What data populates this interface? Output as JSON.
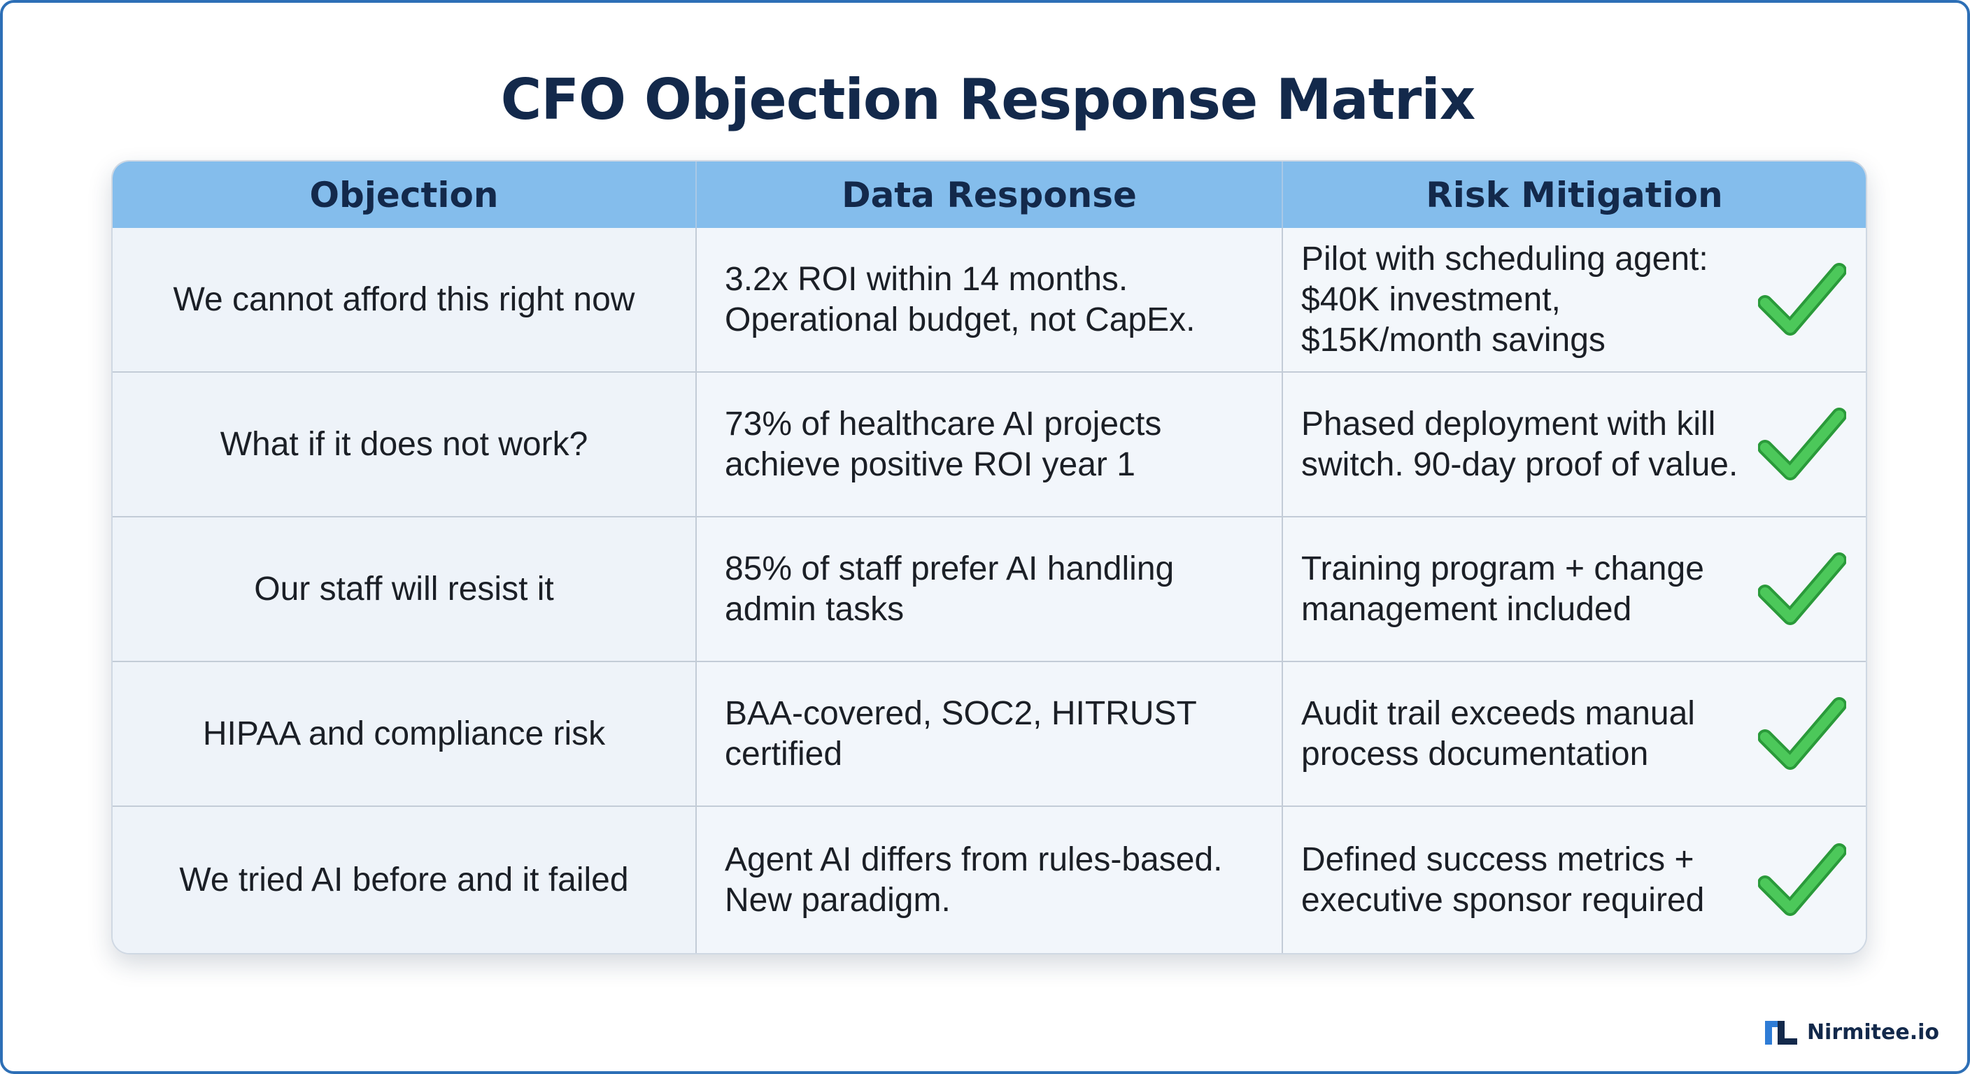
{
  "title": "CFO Objection Response Matrix",
  "table": {
    "headers": [
      "Objection",
      "Data Response",
      "Risk Mitigation"
    ],
    "rows": [
      {
        "objection": "We cannot afford this right now",
        "response": "3.2x ROI within 14 months.\nOperational budget, not CapEx.",
        "mitigation": "Pilot with scheduling agent:\n$40K investment,\n$15K/month savings",
        "icon": "check-icon"
      },
      {
        "objection": "What if it does not work?",
        "response": "73% of healthcare AI projects\nachieve positive ROI year 1",
        "mitigation": "Phased deployment with kill\nswitch. 90-day proof of value.",
        "icon": "check-icon"
      },
      {
        "objection": "Our staff will resist it",
        "response": "85% of staff prefer AI handling\nadmin tasks",
        "mitigation": "Training program + change\nmanagement included",
        "icon": "check-icon"
      },
      {
        "objection": "HIPAA and compliance risk",
        "response": "BAA-covered, SOC2, HITRUST\ncertified",
        "mitigation": "Audit trail exceeds manual\nprocess documentation",
        "icon": "check-icon"
      },
      {
        "objection": "We tried AI before and it failed",
        "response": "Agent AI differs from rules-based.\nNew paradigm.",
        "mitigation": "Defined success metrics +\nexecutive sponsor required",
        "icon": "check-icon"
      }
    ]
  },
  "brand": {
    "name": "Nirmitee.io",
    "icon": "nirmitee-logo-icon"
  },
  "colors": {
    "title": "#13294b",
    "header_bg": "#84bdec",
    "check_green": "#3cb94a",
    "frame_border": "#2d6fb6",
    "logo_blue": "#2e7cd6"
  }
}
